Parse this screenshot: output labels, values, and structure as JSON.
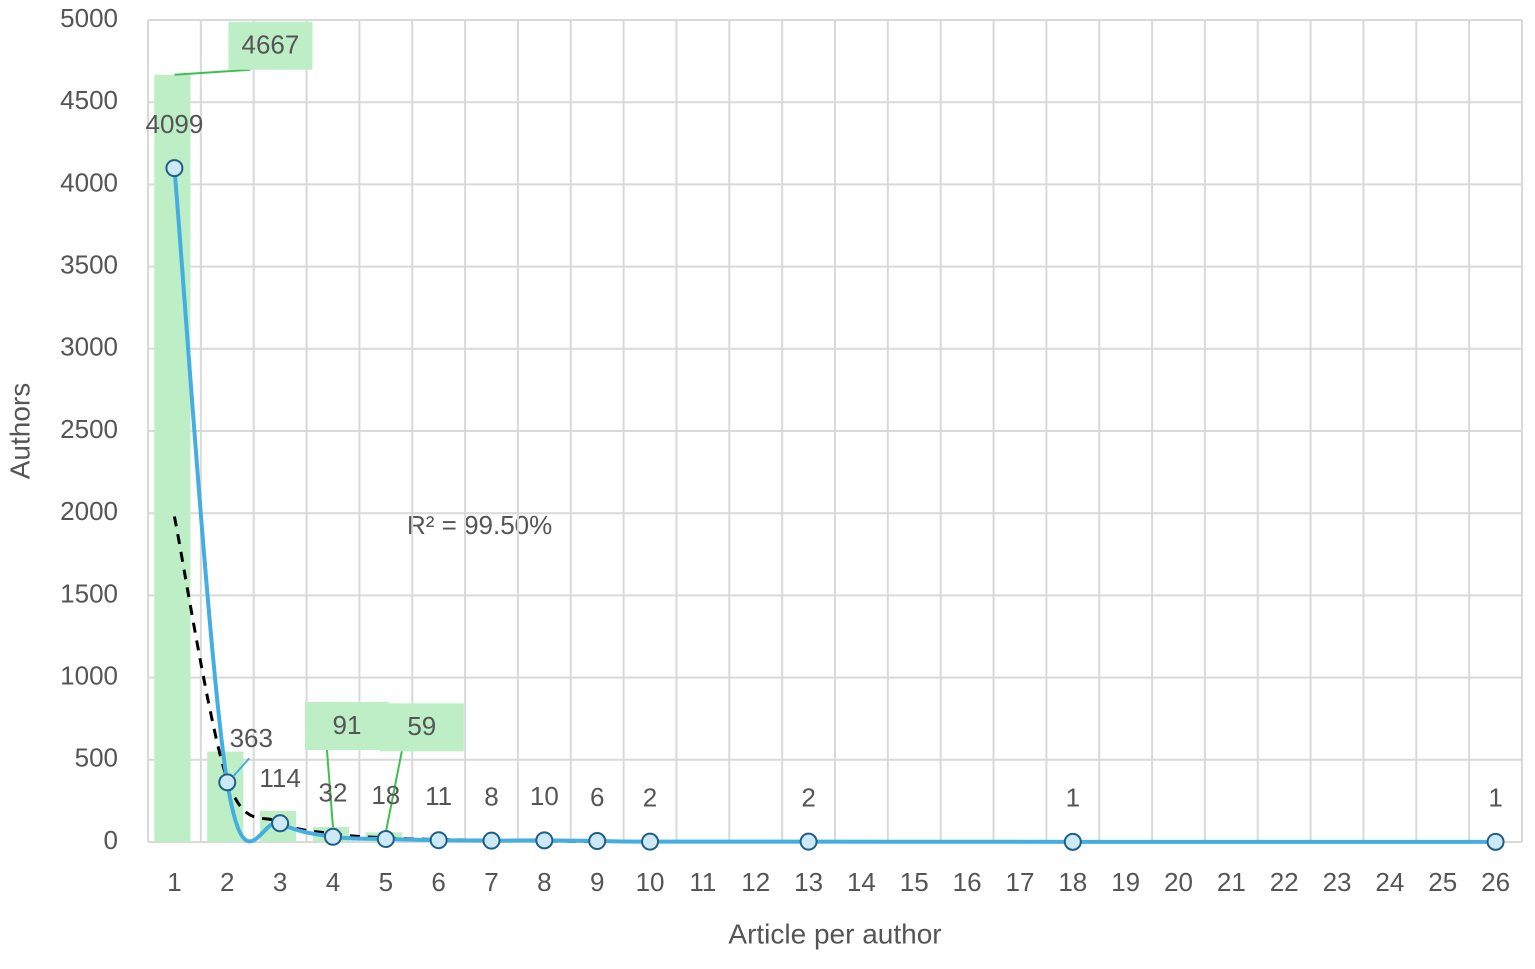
{
  "chart_data": {
    "type": "combo",
    "xlabel": "Article per author",
    "ylabel": "Authors",
    "annotation": "R² = 99.50%",
    "xlim": [
      0.5,
      26.5
    ],
    "xticks": [
      1,
      2,
      3,
      4,
      5,
      6,
      7,
      8,
      9,
      10,
      11,
      12,
      13,
      14,
      15,
      16,
      17,
      18,
      19,
      20,
      21,
      22,
      23,
      24,
      25,
      26
    ],
    "ylim": [
      0,
      5000
    ],
    "yticks": [
      0,
      500,
      1000,
      1500,
      2000,
      2500,
      3000,
      3500,
      4000,
      4500,
      5000
    ],
    "grid": true,
    "series": [
      {
        "type": "bar",
        "color": "#bdeec5",
        "x": [
          1,
          2,
          3,
          4,
          5
        ],
        "values": [
          4667,
          550,
          190,
          91,
          59
        ],
        "value_labels": [
          "4667",
          null,
          null,
          "91",
          "59"
        ]
      },
      {
        "type": "line",
        "color": "#45aee0",
        "x": [
          1,
          2,
          3,
          4,
          5,
          6,
          7,
          8,
          9,
          10,
          13,
          18,
          26
        ],
        "values": [
          4099,
          363,
          114,
          32,
          18,
          11,
          8,
          10,
          6,
          2,
          2,
          1,
          1
        ]
      },
      {
        "type": "trend",
        "color": "#000000",
        "x": [
          1,
          2,
          3,
          4,
          5,
          6,
          7,
          8,
          9,
          10,
          11,
          12,
          13,
          14,
          15,
          16,
          17,
          18,
          19,
          20,
          21,
          22,
          23,
          24,
          25,
          26
        ],
        "values": [
          1980,
          380,
          120,
          50,
          25,
          15,
          10,
          6,
          4,
          3,
          2,
          2,
          1,
          1,
          1,
          1,
          1,
          1,
          0,
          0,
          0,
          0,
          0,
          0,
          0,
          0
        ]
      }
    ]
  }
}
